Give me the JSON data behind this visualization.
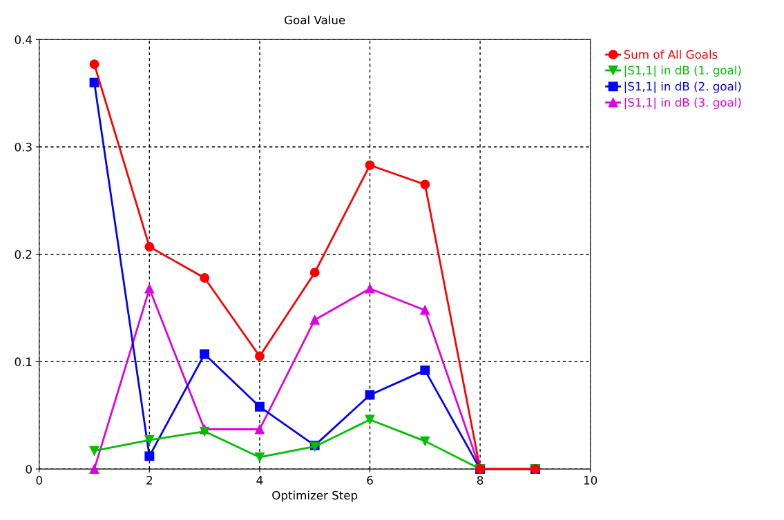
{
  "chart_data": {
    "type": "line",
    "title": "Goal Value",
    "xlabel": "Optimizer Step",
    "x": [
      1,
      2,
      3,
      4,
      5,
      6,
      7,
      8,
      9
    ],
    "series": [
      {
        "name": "Sum of All Goals",
        "color": "#ff0000",
        "marker": "circle",
        "values": [
          0.377,
          0.207,
          0.178,
          0.105,
          0.183,
          0.283,
          0.265,
          0,
          0
        ]
      },
      {
        "name": "|S1,1| in dB (1. goal)",
        "color": "#00c000",
        "marker": "triangle_down",
        "values": [
          0.017,
          0.027,
          0.035,
          0.011,
          0.021,
          0.046,
          0.026,
          0,
          0
        ]
      },
      {
        "name": "|S1,1| in dB (2. goal)",
        "color": "#0000ff",
        "marker": "square",
        "values": [
          0.36,
          0.012,
          0.107,
          0.058,
          0.022,
          0.069,
          0.092,
          0,
          0
        ]
      },
      {
        "name": "|S1,1| in dB (3. goal)",
        "color": "#e000e0",
        "marker": "triangle",
        "values": [
          0,
          0.168,
          0.037,
          0.037,
          0.139,
          0.168,
          0.148,
          0,
          0
        ]
      }
    ],
    "xlim": [
      0,
      10
    ],
    "xticks": [
      0,
      2,
      4,
      6,
      8,
      10
    ],
    "ylim": [
      0,
      0.4
    ],
    "yticks": [
      0,
      0.1,
      0.2,
      0.3,
      0.4
    ],
    "grid": true,
    "line_style": "solid",
    "legend": "top right"
  }
}
